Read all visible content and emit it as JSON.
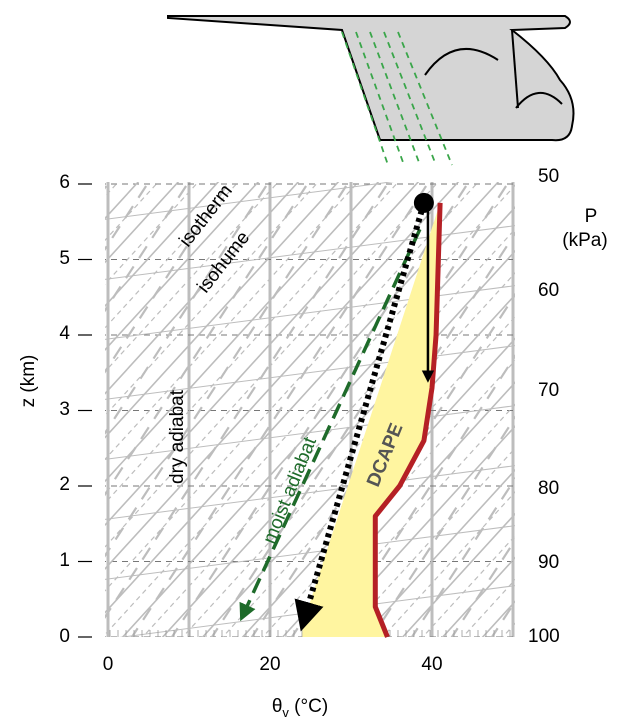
{
  "labels": {
    "y_axis": "z (km)",
    "x_axis_symbol": "θ",
    "x_axis_subscript": "v",
    "x_axis_unit": " (°C)",
    "p_axis_top": "P",
    "p_axis_unit": "(kPa)",
    "isotherm": "isotherm",
    "isohume": "isohume",
    "dry_adiabat": "dry adiabat",
    "moist_adiabat": "moist adiabat",
    "dcape": "DCAPE"
  },
  "z_ticks": [
    "0",
    "1",
    "2",
    "3",
    "4",
    "5",
    "6"
  ],
  "x_ticks": [
    "0",
    "20",
    "40"
  ],
  "p_ticks": [
    "100",
    "90",
    "80",
    "70",
    "60",
    "50"
  ],
  "colors": {
    "environment": "#b52025",
    "moist_adiabat": "#1e6b2a",
    "dcape_fill": "#fff5a0",
    "cloud_fill": "#d5d5d5",
    "rain": "#3aa64a",
    "grid": "#bdbdbd"
  },
  "chart_data": {
    "type": "line",
    "x_unit": "°C",
    "y_unit": "km",
    "xlim": [
      -5,
      50
    ],
    "ylim": [
      0,
      6
    ],
    "series": [
      {
        "role": "environment",
        "points": [
          [
            34.5,
            0
          ],
          [
            33,
            0.4
          ],
          [
            33,
            1.6
          ],
          [
            36,
            2.0
          ],
          [
            39,
            2.6
          ],
          [
            40,
            3.3
          ],
          [
            40.5,
            4.0
          ],
          [
            41,
            5.75
          ]
        ]
      },
      {
        "role": "dry_descent",
        "points": [
          [
            39.5,
            5.75
          ],
          [
            39.5,
            3.4
          ]
        ]
      },
      {
        "role": "moist_descent",
        "points": [
          [
            39,
            5.75
          ],
          [
            24,
            0.15
          ]
        ]
      },
      {
        "role": "moist_adiabat",
        "points": [
          [
            38.5,
            5.4
          ],
          [
            16.5,
            0.25
          ]
        ]
      }
    ]
  }
}
